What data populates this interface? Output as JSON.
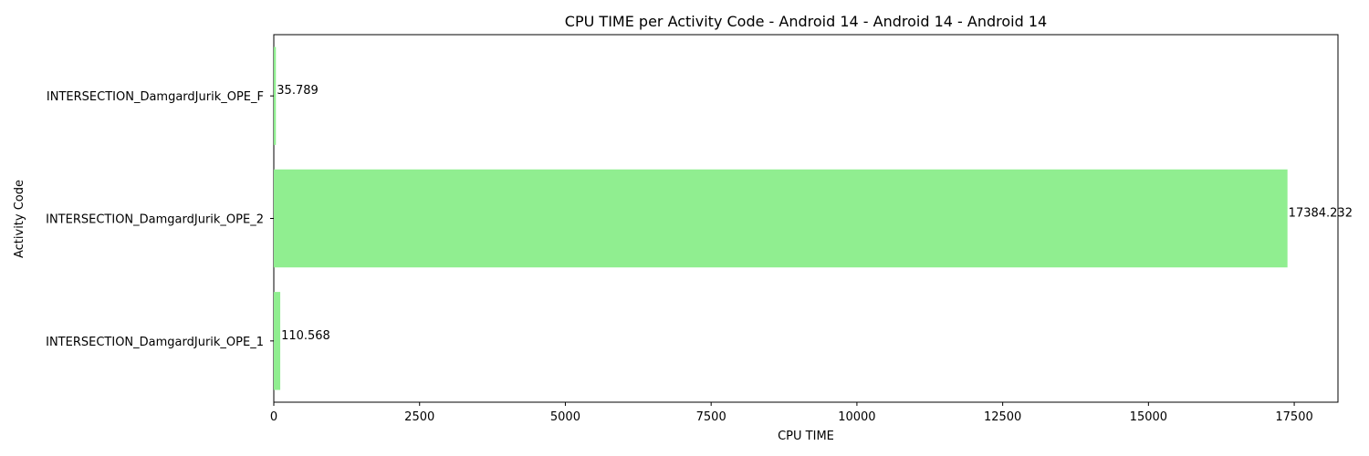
{
  "chart_data": {
    "type": "bar",
    "orientation": "horizontal",
    "title": "CPU TIME per Activity Code - Android 14 - Android 14 - Android 14",
    "xlabel": "CPU TIME",
    "ylabel": "Activity Code",
    "categories": [
      "INTERSECTION_DamgardJurik_OPE_1",
      "INTERSECTION_DamgardJurik_OPE_2",
      "INTERSECTION_DamgardJurik_OPE_F"
    ],
    "values": [
      110.568,
      17384.232,
      35.789
    ],
    "value_labels": [
      "110.568",
      "17384.232",
      "35.789"
    ],
    "xlim": [
      0,
      18250
    ],
    "xticks": [
      0,
      2500,
      5000,
      7500,
      10000,
      12500,
      15000,
      17500
    ],
    "xtick_labels": [
      "0",
      "2500",
      "5000",
      "7500",
      "10000",
      "12500",
      "15000",
      "17500"
    ],
    "bar_color": "#90ee90",
    "bar_edge_color": "#2e7d32",
    "grid": false,
    "legend": "none"
  }
}
